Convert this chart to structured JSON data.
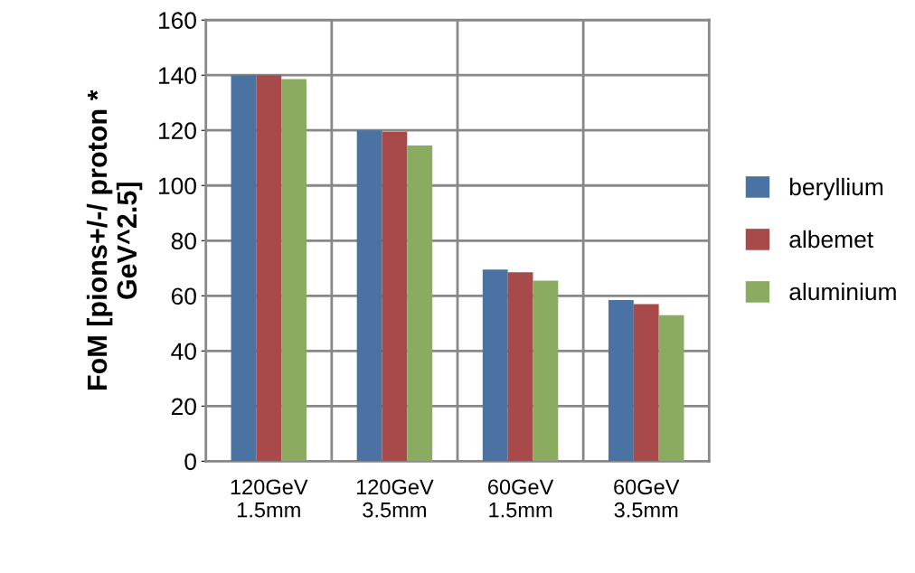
{
  "chart_data": {
    "type": "bar",
    "ylabel": "FoM [pions+/-/ proton *\nGeV^2.5]",
    "categories": [
      "120GeV\n1.5mm",
      "120GeV\n3.5mm",
      "60GeV\n1.5mm",
      "60GeV\n3.5mm"
    ],
    "series": [
      {
        "name": "beryllium",
        "color": "#4a72a3",
        "values": [
          140,
          120,
          69.5,
          58.5
        ]
      },
      {
        "name": "albemet",
        "color": "#a94a4a",
        "values": [
          140,
          119.5,
          68.5,
          57
        ]
      },
      {
        "name": "aluminium",
        "color": "#8bab61",
        "values": [
          138.6,
          114.5,
          65.5,
          53
        ]
      }
    ],
    "ylim": [
      0,
      160
    ],
    "yticks": [
      0,
      20,
      40,
      60,
      80,
      100,
      120,
      140,
      160
    ],
    "grid": true,
    "legend": "right"
  }
}
